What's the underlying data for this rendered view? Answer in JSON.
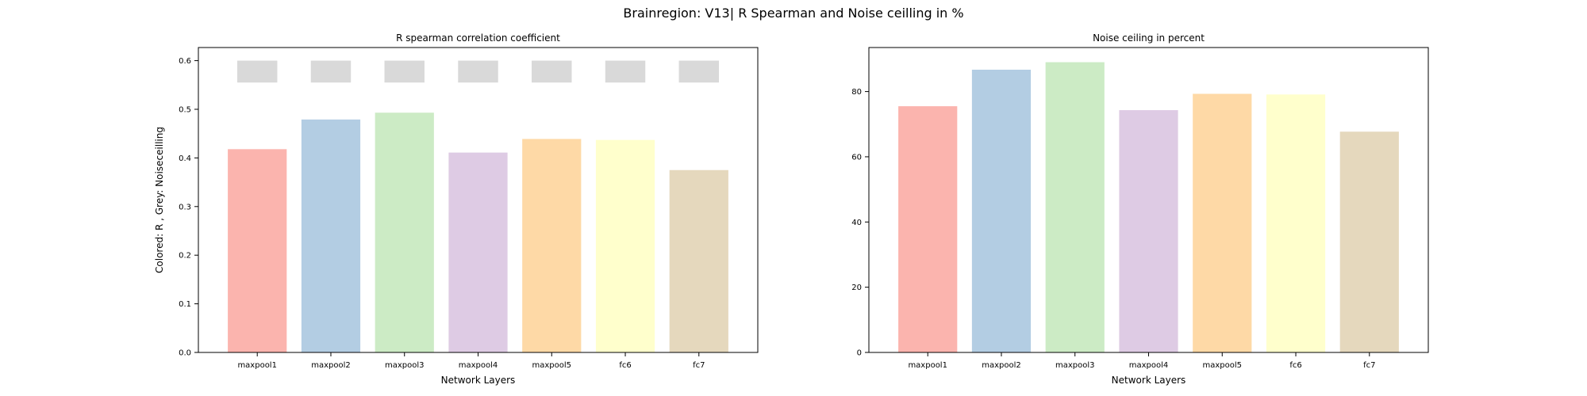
{
  "figure": {
    "suptitle": "Brainregion: V13| R Spearman and Noise ceilling in %"
  },
  "chart_data": [
    {
      "type": "bar",
      "title": "R spearman correlation coefficient",
      "xlabel": "Network Layers",
      "ylabel": "Colored: R , Grey: Noiseceilling",
      "categories": [
        "maxpool1",
        "maxpool2",
        "maxpool3",
        "maxpool4",
        "maxpool5",
        "fc6",
        "fc7"
      ],
      "series": [
        {
          "values": [
            0.418,
            0.479,
            0.493,
            0.411,
            0.439,
            0.437,
            0.375
          ]
        }
      ],
      "noise_ceiling": {
        "lower": 0.555,
        "upper": 0.6,
        "color": "#d9d9d9"
      },
      "colors": [
        "#fbb4ae",
        "#b3cde3",
        "#ccebc5",
        "#decbe4",
        "#fed9a6",
        "#ffffcc",
        "#e5d8bd"
      ],
      "ylim": [
        0,
        0.627
      ],
      "yticks": [
        0.0,
        0.1,
        0.2,
        0.3,
        0.4,
        0.5,
        0.6
      ],
      "ytick_labels": [
        "0.0",
        "0.1",
        "0.2",
        "0.3",
        "0.4",
        "0.5",
        "0.6"
      ],
      "grid": false,
      "legend": "none"
    },
    {
      "type": "bar",
      "title": "Noise ceiling in percent",
      "xlabel": "Network Layers",
      "ylabel": "",
      "categories": [
        "maxpool1",
        "maxpool2",
        "maxpool3",
        "maxpool4",
        "maxpool5",
        "fc6",
        "fc7"
      ],
      "series": [
        {
          "values": [
            75.5,
            86.7,
            89.0,
            74.3,
            79.3,
            79.1,
            67.7
          ]
        }
      ],
      "colors": [
        "#fbb4ae",
        "#b3cde3",
        "#ccebc5",
        "#decbe4",
        "#fed9a6",
        "#ffffcc",
        "#e5d8bd"
      ],
      "ylim": [
        0,
        93.5
      ],
      "yticks": [
        0,
        20,
        40,
        60,
        80
      ],
      "ytick_labels": [
        "0",
        "20",
        "40",
        "60",
        "80"
      ],
      "grid": false,
      "legend": "none"
    }
  ]
}
